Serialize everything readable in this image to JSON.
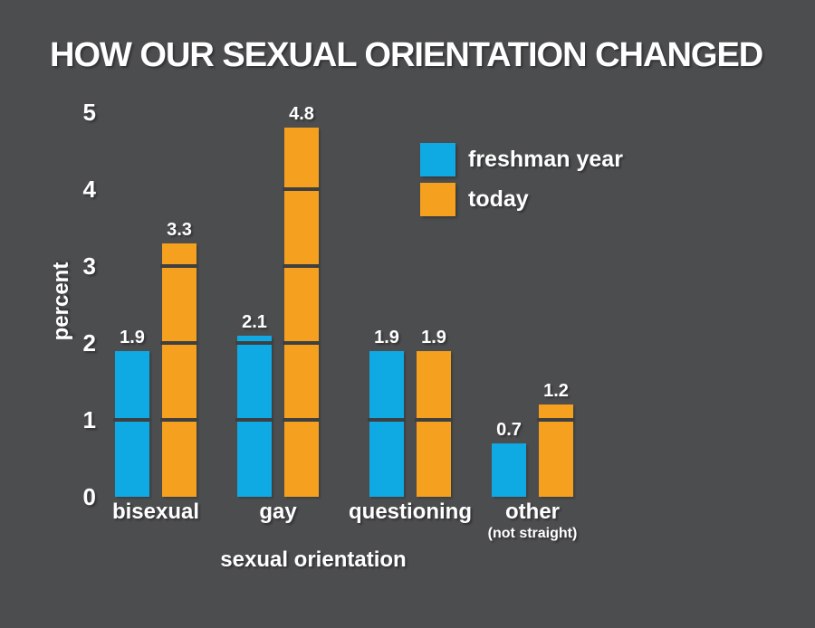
{
  "title": "HOW OUR SEXUAL ORIENTATION CHANGED",
  "colors": {
    "background": "#4C4D4F",
    "text": "#FFFFFF",
    "grid_line": "#3E3F41",
    "series_freshman_year": "#0FA9E4",
    "series_today": "#F5A01E"
  },
  "chart_data": {
    "type": "bar",
    "title": "HOW OUR SEXUAL ORIENTATION CHANGED",
    "xlabel": "sexual orientation",
    "ylabel": "percent",
    "categories": [
      "bisexual",
      "gay",
      "questioning",
      "other"
    ],
    "category_sublabels": [
      "",
      "",
      "",
      "(not straight)"
    ],
    "series": [
      {
        "name": "freshman year",
        "color": "#0FA9E4",
        "values": [
          1.9,
          2.1,
          1.9,
          0.7
        ]
      },
      {
        "name": "today",
        "color": "#F5A01E",
        "values": [
          3.3,
          4.8,
          1.9,
          1.2
        ]
      }
    ],
    "value_label_format": "one_decimal",
    "ylim": [
      0,
      5
    ],
    "yticks": [
      0,
      1,
      2,
      3,
      4,
      5
    ],
    "grid": "horizontal dark segments drawn only across bars at integer values",
    "legend_position": "upper right",
    "grid_color": "#3E3F41"
  }
}
